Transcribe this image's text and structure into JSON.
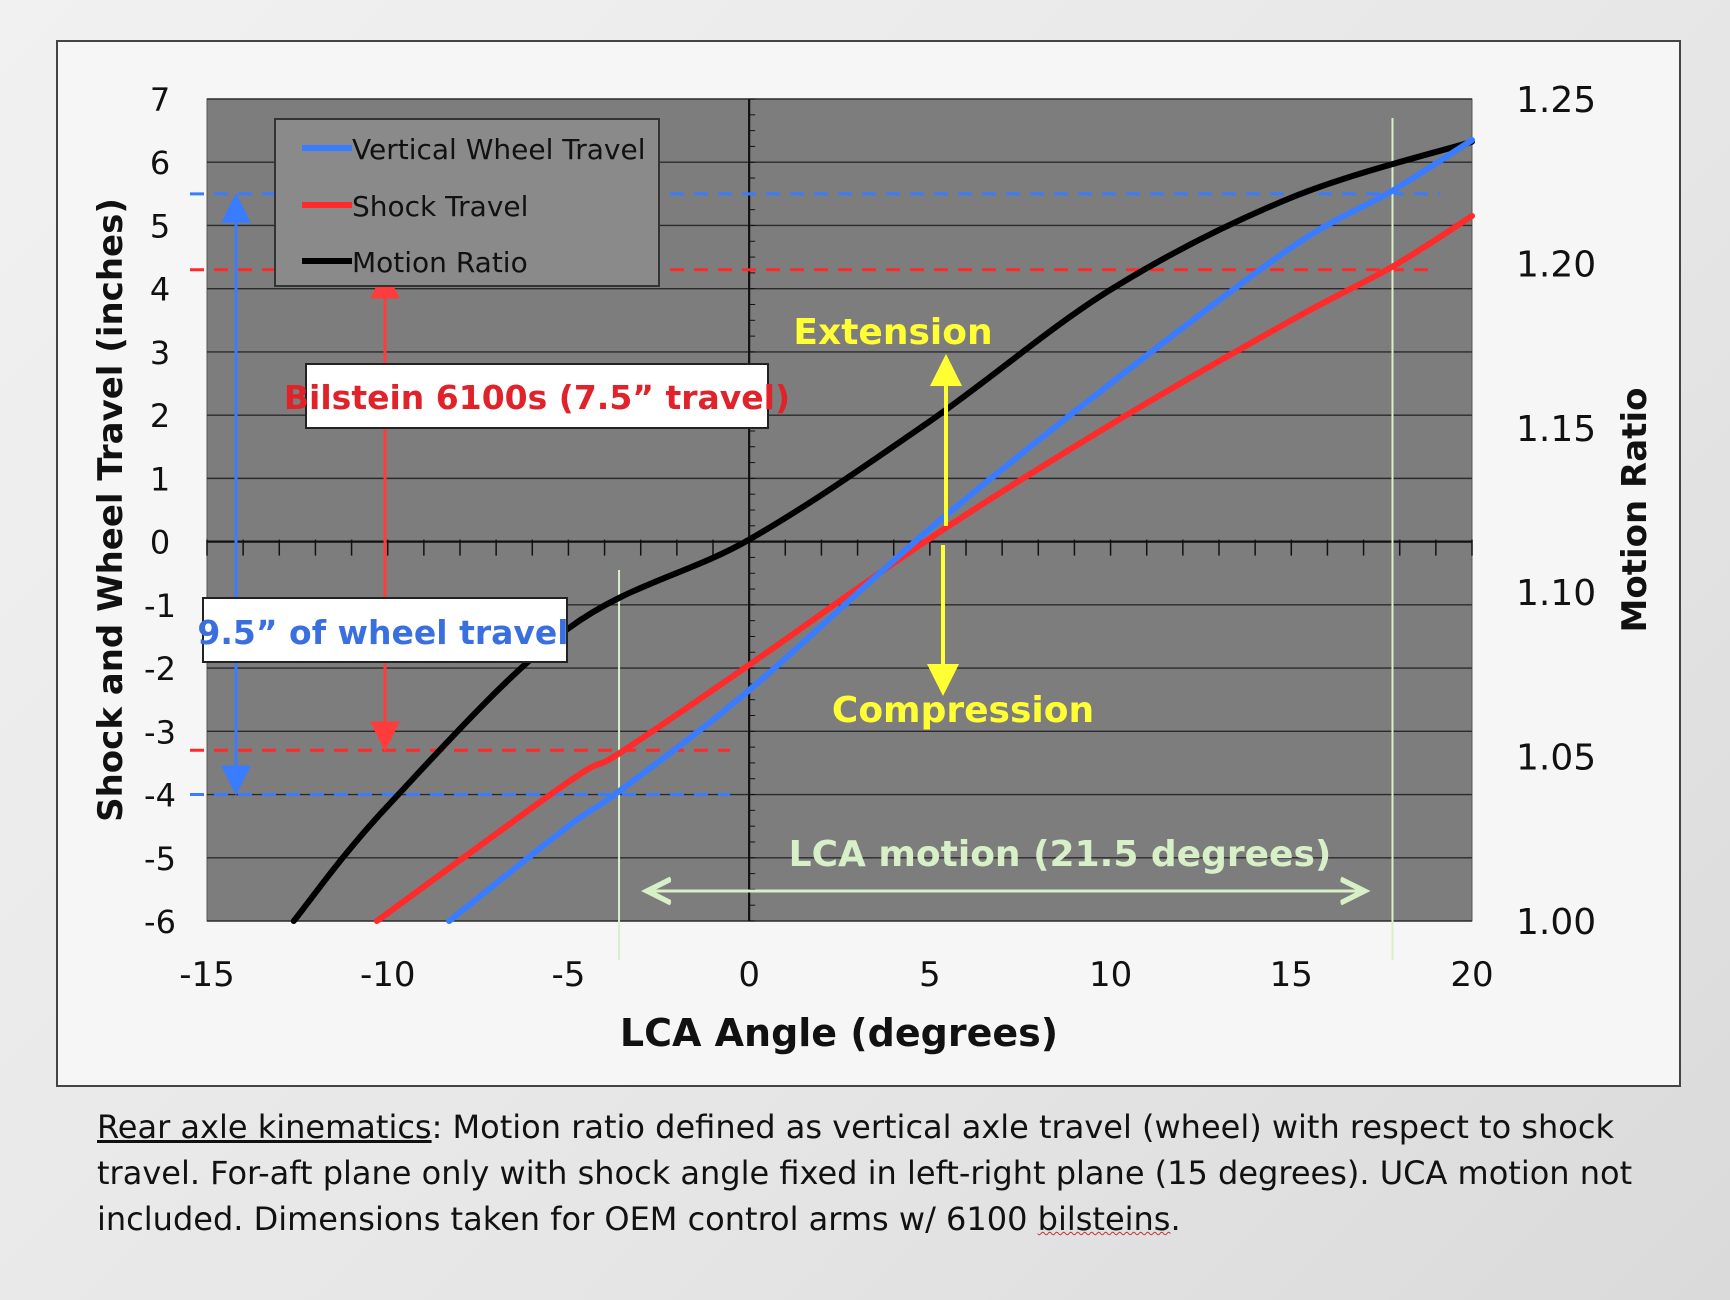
{
  "chart_data": {
    "type": "line",
    "xlabel": "LCA Angle (degrees)",
    "ylabel": "Shock and Wheel Travel (inches)",
    "y2label": "Motion Ratio",
    "xlim": [
      -15,
      20
    ],
    "ylim": [
      -6,
      7
    ],
    "y2lim": [
      1.0,
      1.25
    ],
    "x_ticks": [
      "-15",
      "-10",
      "-5",
      "0",
      "5",
      "10",
      "15",
      "20"
    ],
    "y_ticks": [
      "7",
      "6",
      "5",
      "4",
      "3",
      "2",
      "1",
      "0",
      "-1",
      "-2",
      "-3",
      "-4",
      "-5",
      "-6"
    ],
    "y2_ticks": [
      "1.25",
      "1.20",
      "1.15",
      "1.10",
      "1.05",
      "1.00"
    ],
    "grid": "horizontal",
    "legend_position": "top-left",
    "colors": {
      "vertical_wheel_travel": "#3a7cff",
      "shock_travel": "#ff2a2a",
      "motion_ratio": "#000000",
      "annotation_yellow": "#ffff33",
      "lca_green": "#d8f0c8",
      "plot_bg": "#7d7d7d"
    },
    "series": [
      {
        "name": "Vertical Wheel Travel",
        "axis": "left",
        "x": [
          -8.3,
          -5,
          -3.6,
          0,
          5,
          10,
          15,
          17.8,
          20
        ],
        "y": [
          -6,
          -4.5,
          -3.95,
          -2.35,
          0.2,
          2.5,
          4.65,
          5.55,
          6.35
        ]
      },
      {
        "name": "Shock Travel",
        "axis": "left",
        "x": [
          -10.3,
          -5,
          -3.6,
          0,
          5,
          10,
          15,
          17.8,
          20
        ],
        "y": [
          -6,
          -3.8,
          -3.35,
          -1.95,
          0.05,
          1.85,
          3.5,
          4.35,
          5.15
        ]
      },
      {
        "name": "Motion Ratio",
        "axis": "right",
        "x": [
          -12.6,
          -10,
          -5,
          0,
          5,
          10,
          15,
          20
        ],
        "y": [
          1.0,
          1.035,
          1.089,
          1.116,
          1.152,
          1.192,
          1.22,
          1.237
        ]
      }
    ],
    "reference_lines": {
      "wheel_travel_levels": [
        5.5,
        -4.0
      ],
      "shock_travel_levels": [
        4.3,
        -3.3
      ],
      "lca_limits": [
        -3.6,
        17.8
      ]
    },
    "annotations": {
      "bilstein": "Bilstein 6100s (7.5” travel)",
      "wheel_travel": "9.5” of wheel travel",
      "extension": "Extension",
      "compression": "Compression",
      "lca_motion": "LCA motion (21.5 degrees)"
    }
  },
  "caption": {
    "lead": "Rear axle kinematics",
    "line1_rest": ": Motion ratio defined as vertical axle travel (wheel) with respect to shock",
    "line2": "travel. For-aft plane only with shock angle fixed in left-right plane (15 degrees). UCA motion not",
    "line3_pre": "included. Dimensions taken for OEM control arms w/ 6100 ",
    "line3_wavy": "bilsteins",
    "line3_end": "."
  }
}
